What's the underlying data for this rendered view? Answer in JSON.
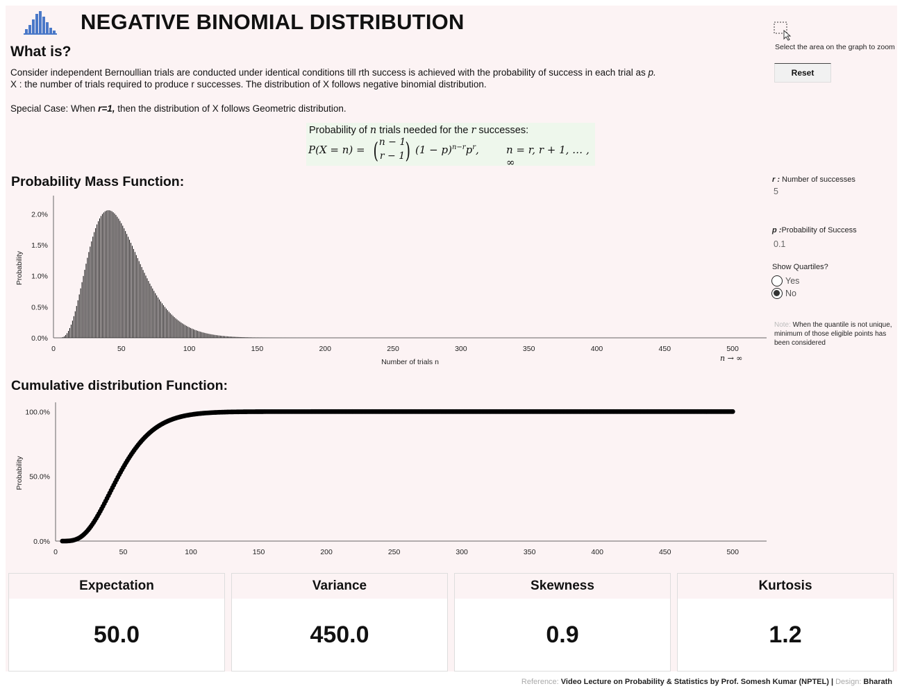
{
  "header": {
    "title": "NEGATIVE BINOMIAL DISTRIBUTION",
    "logo_icon": "bar-chart-logo-icon"
  },
  "intro": {
    "heading": "What is?",
    "line1": "Consider independent Bernoullian trials are conducted under identical conditions till rth success is achieved with the probability of success in each trial as",
    "line1_var": "p.",
    "line2": "X : the number of trials required to produce r successes. The distribution of X follows negative binomial distribution.",
    "special_prefix": "Special Case:  When ",
    "special_bold": "r=1,",
    "special_suffix": " then the distribution of X follows Geometric distribution."
  },
  "formula": {
    "caption_a": "Probability of ",
    "caption_n": "n",
    "caption_b": " trials needed for the ",
    "caption_r": "r",
    "caption_c": " successes:",
    "lhs": "P(X = n) =",
    "binom_top": "n − 1",
    "binom_bottom": "r − 1",
    "middle": "(1 − p)",
    "exp1": "n−r",
    "p_term": "p",
    "exp2": "r",
    "comma": ",",
    "range": "n = r, r + 1, … , ∞"
  },
  "zoom": {
    "icon": "zoom-select-icon",
    "hint": "Select the area on the graph to zoom",
    "reset_label": "Reset"
  },
  "controls": {
    "r_label_var": "r :",
    "r_label": " Number of successes",
    "r_value": "5",
    "p_label_var": "p :",
    "p_label": "Probability of Success",
    "p_value": "0.1",
    "quartiles_label": "Show Quartiles?",
    "options": [
      "Yes",
      "No"
    ],
    "selected": "No",
    "note_prefix": "Note:",
    "note_text": " When the quantile is not unique, minimum of those eligible points has been considered"
  },
  "pmf": {
    "heading": "Probability Mass Function:",
    "ylabel": "Probability",
    "xlabel": "Number of trials n",
    "infinity_note": "n → ∞"
  },
  "cdf": {
    "heading": "Cumulative distribution Function:",
    "ylabel": "Probability"
  },
  "chart_data": [
    {
      "type": "bar",
      "title": "Probability Mass Function:",
      "distribution": "negative binomial",
      "r": 5,
      "p": 0.1,
      "x_range": [
        5,
        500
      ],
      "xlabel": "Number of trials n",
      "ylabel": "Probability",
      "xlim": [
        0,
        525
      ],
      "ylim": [
        0,
        0.0225
      ],
      "xticks": [
        0,
        50,
        100,
        150,
        200,
        250,
        300,
        350,
        400,
        450,
        500
      ],
      "yticks": [
        0,
        0.005,
        0.01,
        0.015,
        0.02
      ],
      "ytick_labels": [
        "0.0%",
        "0.5%",
        "1.0%",
        "1.5%",
        "2.0%"
      ],
      "sample_points": [
        {
          "x": 10,
          "y": 0.0011
        },
        {
          "x": 20,
          "y": 0.008
        },
        {
          "x": 30,
          "y": 0.0159
        },
        {
          "x": 41,
          "y": 0.0207
        },
        {
          "x": 50,
          "y": 0.0194
        },
        {
          "x": 60,
          "y": 0.0153
        },
        {
          "x": 80,
          "y": 0.0066
        },
        {
          "x": 100,
          "y": 0.0021
        },
        {
          "x": 130,
          "y": 0.0003
        }
      ]
    },
    {
      "type": "scatter",
      "title": "Cumulative distribution Function:",
      "distribution": "negative binomial CDF",
      "r": 5,
      "p": 0.1,
      "x_range": [
        5,
        500
      ],
      "ylabel": "Probability",
      "xlim": [
        0,
        525
      ],
      "ylim": [
        0,
        1.05
      ],
      "xticks": [
        0,
        50,
        100,
        150,
        200,
        250,
        300,
        350,
        400,
        450,
        500
      ],
      "yticks": [
        0,
        0.5,
        1
      ],
      "ytick_labels": [
        "0.0%",
        "50.0%",
        "100.0%"
      ],
      "sample_points": [
        {
          "x": 10,
          "y": 0.002
        },
        {
          "x": 30,
          "y": 0.18
        },
        {
          "x": 50,
          "y": 0.57
        },
        {
          "x": 70,
          "y": 0.85
        },
        {
          "x": 100,
          "y": 0.98
        },
        {
          "x": 150,
          "y": 1.0
        },
        {
          "x": 500,
          "y": 1.0
        }
      ]
    }
  ],
  "stats": [
    {
      "label": "Expectation",
      "value": "50.0"
    },
    {
      "label": "Variance",
      "value": "450.0"
    },
    {
      "label": "Skewness",
      "value": "0.9"
    },
    {
      "label": "Kurtosis",
      "value": "1.2"
    }
  ],
  "footer": {
    "ref_label": "Reference:",
    "ref_text": " Video Lecture on Probability & Statistics by Prof. Somesh Kumar (NPTEL) ",
    "sep": "|",
    "design_label": " Design:",
    "design_text": " Bharath"
  },
  "colors": {
    "background": "#fcf3f4",
    "formula_bg": "#eef7ec",
    "logo": "#4a78c8",
    "bars": "#000000"
  }
}
